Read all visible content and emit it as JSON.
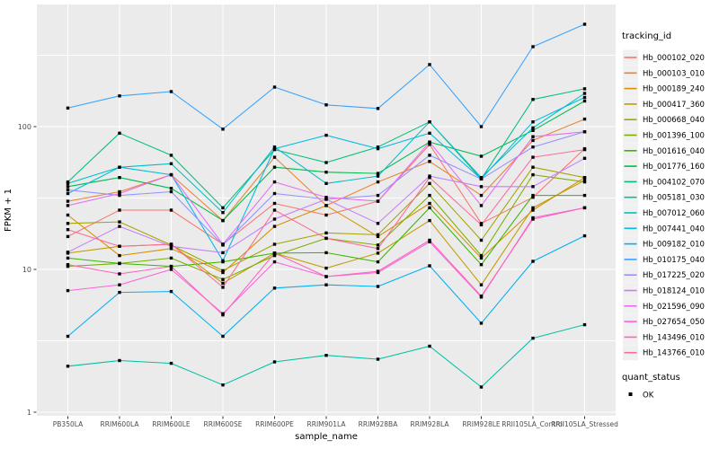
{
  "chart_data": {
    "type": "line",
    "title": "",
    "xlabel": "sample_name",
    "ylabel": "FPKM + 1",
    "yscale": "log10",
    "yticks": [
      1,
      10,
      100
    ],
    "ytick_labels": [
      "1",
      "10",
      "100"
    ],
    "yminor": [
      3.162,
      31.62,
      316.2
    ],
    "ylim": [
      1,
      700
    ],
    "grid": true,
    "legend_position": "right",
    "panel_bg": "#EBEBEB",
    "grid_color": "#FFFFFF",
    "axis_text_color": "#4D4D4D",
    "axis_title_color": "#000000",
    "point_color": "#000000",
    "categories": [
      "PB350LA",
      "RRIM600LA",
      "RRIM600LE",
      "RRIM600SE",
      "RRIM600PE",
      "RRIM901LA",
      "RRIM928BA",
      "RRIM928LA",
      "RRIM928LE",
      "RRII105LA_Control",
      "RRII105LA_Stressed"
    ],
    "series": [
      {
        "name": "Hb_000102_020",
        "color": "#F8766D",
        "values": [
          17,
          26,
          26,
          15,
          29,
          24,
          30,
          75,
          21,
          32,
          70
        ]
      },
      {
        "name": "Hb_000103_010",
        "color": "#EA8331",
        "values": [
          30,
          35,
          46,
          22,
          61,
          28,
          41,
          57,
          33,
          80,
          113
        ]
      },
      {
        "name": "Hb_000189_240",
        "color": "#D89000",
        "values": [
          24,
          12.5,
          14,
          9.5,
          20,
          28,
          17,
          29,
          12,
          26,
          44
        ]
      },
      {
        "name": "Hb_000417_360",
        "color": "#C09B00",
        "values": [
          13,
          14.5,
          15,
          8,
          13,
          10.2,
          13,
          22,
          7.8,
          27,
          42
        ]
      },
      {
        "name": "Hb_000668_040",
        "color": "#A3A500",
        "values": [
          21,
          21.5,
          14.8,
          9.8,
          15,
          18,
          17.5,
          40,
          16,
          52,
          44
        ]
      },
      {
        "name": "Hb_001396_100",
        "color": "#7CAE00",
        "values": [
          10.5,
          11,
          12,
          8.5,
          12.5,
          16.5,
          14.8,
          33,
          12.5,
          46,
          41
        ]
      },
      {
        "name": "Hb_001616_040",
        "color": "#39B600",
        "values": [
          12,
          11,
          10.5,
          11.3,
          13,
          13.1,
          11.3,
          27,
          10.8,
          33,
          33
        ]
      },
      {
        "name": "Hb_001776_160",
        "color": "#00BB4E",
        "values": [
          38,
          44,
          37,
          22,
          52,
          48,
          47,
          78,
          62,
          94,
          151
        ]
      },
      {
        "name": "Hb_004102_070",
        "color": "#00BF7D",
        "values": [
          41,
          90,
          63,
          27,
          69,
          56,
          72,
          108,
          43,
          155,
          184
        ]
      },
      {
        "name": "Hb_005181_030",
        "color": "#00C1A3",
        "values": [
          2.1,
          2.3,
          2.2,
          1.55,
          2.25,
          2.5,
          2.35,
          2.9,
          1.5,
          3.3,
          4.1
        ]
      },
      {
        "name": "Hb_007012_060",
        "color": "#00BFC4",
        "values": [
          40,
          52,
          55,
          25,
          72,
          40,
          45,
          108,
          44,
          98,
          171
        ]
      },
      {
        "name": "Hb_007441_040",
        "color": "#00BAE0",
        "values": [
          34,
          52,
          46,
          11.5,
          70,
          87,
          70,
          90,
          43,
          108,
          160
        ]
      },
      {
        "name": "Hb_009182_010",
        "color": "#00B0F6",
        "values": [
          3.4,
          6.9,
          7.0,
          3.4,
          7.4,
          7.8,
          7.6,
          10.6,
          4.2,
          11.4,
          17.2
        ]
      },
      {
        "name": "Hb_010175_040",
        "color": "#35A2FF",
        "values": [
          135,
          164,
          176,
          96,
          189,
          142,
          134,
          272,
          100,
          363,
          521
        ]
      },
      {
        "name": "Hb_017225_020",
        "color": "#9590FF",
        "values": [
          36,
          33,
          35,
          14.8,
          34,
          31,
          33,
          63,
          43,
          72,
          92
        ]
      },
      {
        "name": "Hb_018124_010",
        "color": "#C77CFF",
        "values": [
          13.2,
          20,
          14.5,
          13.1,
          22.5,
          31,
          21,
          45,
          38,
          38,
          60
        ]
      },
      {
        "name": "Hb_021596_090",
        "color": "#E76BF3",
        "values": [
          28,
          34,
          46,
          15,
          41,
          32,
          30,
          78,
          28,
          85,
          92
        ]
      },
      {
        "name": "Hb_027654_050",
        "color": "#FA62DB",
        "values": [
          7.1,
          7.8,
          10,
          4.9,
          11.3,
          8.9,
          9.5,
          15.6,
          6.4,
          23,
          27
        ]
      },
      {
        "name": "Hb_143496_010",
        "color": "#FF62BC",
        "values": [
          10.8,
          9.3,
          10.5,
          4.8,
          13,
          8.9,
          9.7,
          16,
          6.5,
          22.5,
          27
        ]
      },
      {
        "name": "Hb_143766_010",
        "color": "#FF6A98",
        "values": [
          19,
          14.5,
          15,
          7.5,
          26,
          16.5,
          14,
          44,
          20.5,
          61,
          69
        ]
      }
    ],
    "legend": {
      "tracking_title": "tracking_id",
      "quant_title": "quant_status",
      "quant_items": [
        {
          "label": "OK",
          "marker": "black-square"
        }
      ]
    }
  }
}
